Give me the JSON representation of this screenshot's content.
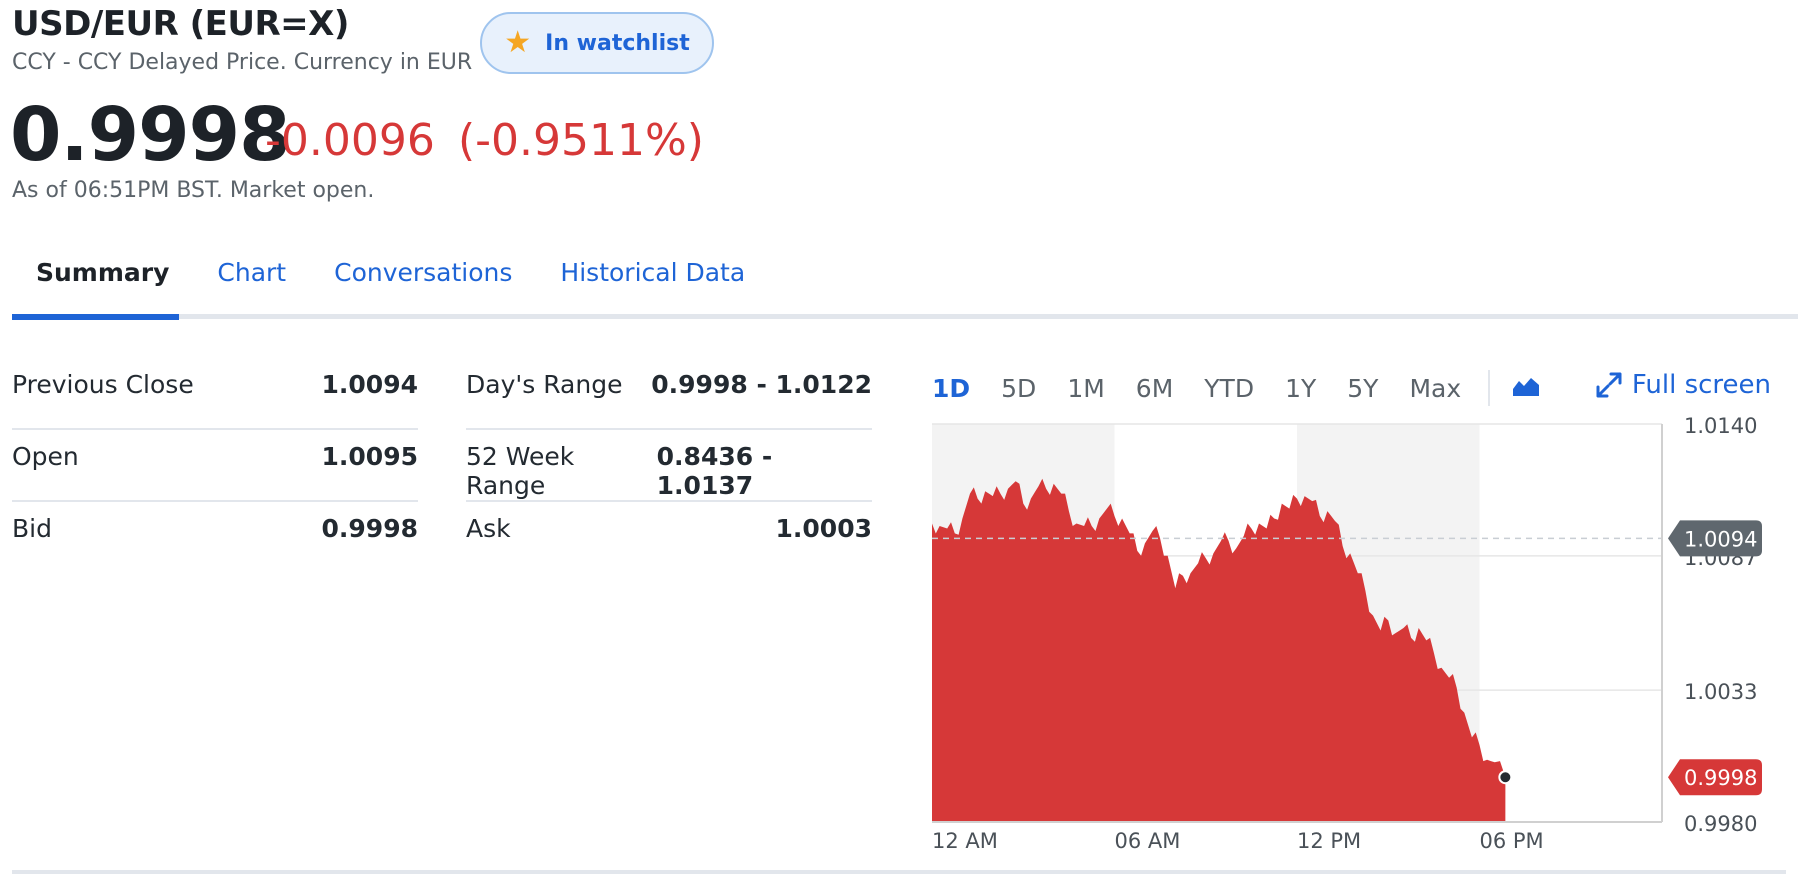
{
  "header": {
    "title": "USD/EUR (EUR=X)",
    "subtitle": "CCY - CCY Delayed Price. Currency in EUR",
    "watchlist_label": "In watchlist",
    "watchlist_icon": "star-icon"
  },
  "quote": {
    "price": "0.9998",
    "change": "-0.0096",
    "change_pct": "(-0.9511%)",
    "as_of": "As of 06:51PM BST. Market open.",
    "negative_color": "#d63838"
  },
  "tabs": [
    {
      "label": "Summary",
      "active": true
    },
    {
      "label": "Chart",
      "active": false
    },
    {
      "label": "Conversations",
      "active": false
    },
    {
      "label": "Historical Data",
      "active": false
    }
  ],
  "stats": {
    "left": [
      {
        "label": "Previous Close",
        "value": "1.0094"
      },
      {
        "label": "Open",
        "value": "1.0095"
      },
      {
        "label": "Bid",
        "value": "0.9998"
      }
    ],
    "right": [
      {
        "label": "Day's Range",
        "value": "0.9998 - 1.0122"
      },
      {
        "label": "52 Week Range",
        "value": "0.8436 - 1.0137"
      },
      {
        "label": "Ask",
        "value": "1.0003"
      }
    ]
  },
  "chart_controls": {
    "ranges": [
      "1D",
      "5D",
      "1M",
      "6M",
      "YTD",
      "1Y",
      "5Y",
      "Max"
    ],
    "active_range": "1D",
    "chart_type_icon": "area-chart-icon",
    "fullscreen_label": "Full screen",
    "fullscreen_icon": "expand-icon"
  },
  "chart_data": {
    "type": "area",
    "title": "",
    "xlabel": "",
    "ylabel": "",
    "x_ticks": [
      "12 AM",
      "06 AM",
      "12 PM",
      "06 PM"
    ],
    "y_ticks": [
      "1.0140",
      "1.0087",
      "1.0033",
      "0.9980"
    ],
    "ylim": [
      0.998,
      1.014
    ],
    "x_range_hours": [
      0,
      24
    ],
    "previous_close": 1.0094,
    "previous_close_label": "1.0094",
    "last_price": 0.9998,
    "last_price_label": "0.9998",
    "fill_color": "#d63838",
    "shaded_hour_bands": [
      [
        0,
        6
      ],
      [
        12,
        18
      ]
    ],
    "series": [
      {
        "x": [
          0,
          0.25,
          0.5,
          0.75,
          1,
          1.25,
          1.5,
          1.75,
          2,
          2.25,
          2.5,
          2.75,
          3,
          3.25,
          3.5,
          3.75,
          4,
          4.25,
          4.5,
          4.75,
          5,
          5.25,
          5.5,
          5.75,
          6,
          6.25,
          6.5,
          6.75,
          7,
          7.25,
          7.5,
          7.75,
          8,
          8.25,
          8.5,
          8.75,
          9,
          9.25,
          9.5,
          9.75,
          10,
          10.25,
          10.5,
          10.75,
          11,
          11.25,
          11.5,
          11.75,
          12,
          12.25,
          12.5,
          12.75,
          13,
          13.25,
          13.5,
          13.75,
          14,
          14.25,
          14.5,
          14.75,
          15,
          15.25,
          15.5,
          15.75,
          16,
          16.25,
          16.5,
          16.75,
          17,
          17.25,
          17.5,
          17.75,
          18,
          18.25,
          18.5,
          18.85
        ],
        "y": [
          1.01,
          1.0099,
          1.0098,
          1.0096,
          1.0102,
          1.0112,
          1.011,
          1.0113,
          1.0111,
          1.0112,
          1.0114,
          1.0117,
          1.0108,
          1.011,
          1.0115,
          1.0114,
          1.0116,
          1.0112,
          1.0105,
          1.01,
          1.0099,
          1.0099,
          1.0102,
          1.0106,
          1.0103,
          1.0102,
          1.0096,
          1.0089,
          1.0092,
          1.0097,
          1.0094,
          1.0087,
          1.0074,
          1.0079,
          1.008,
          1.0084,
          1.0086,
          1.0088,
          1.0093,
          1.0093,
          1.009,
          1.0095,
          1.0098,
          1.01,
          1.0098,
          1.0102,
          1.0108,
          1.0106,
          1.011,
          1.0111,
          1.0109,
          1.0103,
          1.0105,
          1.0101,
          1.0091,
          1.0088,
          1.008,
          1.0073,
          1.0063,
          1.0057,
          1.0061,
          1.0056,
          1.0058,
          1.0054,
          1.0058,
          1.0053,
          1.0048,
          1.0042,
          1.0038,
          1.0034,
          1.0024,
          1.0014,
          1.0011,
          1.0005,
          1.0004,
          0.9998
        ]
      }
    ]
  }
}
